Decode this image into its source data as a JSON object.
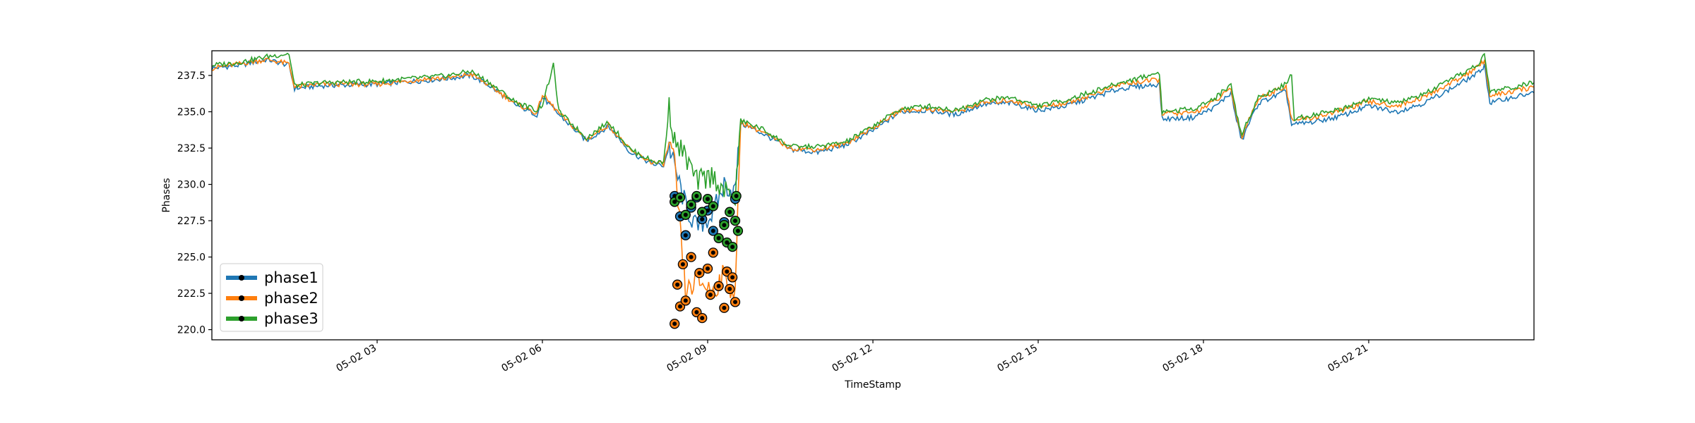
{
  "chart_data": {
    "type": "line",
    "xlabel": "TimeStamp",
    "ylabel": "Phases",
    "xlim": [
      0,
      24
    ],
    "ylim": [
      219.3,
      239.2
    ],
    "x_ticks": [
      {
        "value": 3,
        "label": "05-02 03"
      },
      {
        "value": 6,
        "label": "05-02 06"
      },
      {
        "value": 9,
        "label": "05-02 09"
      },
      {
        "value": 12,
        "label": "05-02 12"
      },
      {
        "value": 15,
        "label": "05-02 15"
      },
      {
        "value": 18,
        "label": "05-02 18"
      },
      {
        "value": 21,
        "label": "05-02 21"
      }
    ],
    "y_ticks": [
      {
        "value": 220.0,
        "label": "220.0"
      },
      {
        "value": 222.5,
        "label": "222.5"
      },
      {
        "value": 225.0,
        "label": "225.0"
      },
      {
        "value": 227.5,
        "label": "227.5"
      },
      {
        "value": 230.0,
        "label": "230.0"
      },
      {
        "value": 232.5,
        "label": "232.5"
      },
      {
        "value": 235.0,
        "label": "235.0"
      },
      {
        "value": 237.5,
        "label": "237.5"
      }
    ],
    "grid": false,
    "legend_position": "lower-left",
    "series": [
      {
        "name": "phase1",
        "color": "#1f77b4",
        "line": [
          [
            0,
            238.0
          ],
          [
            0.5,
            238.2
          ],
          [
            1.0,
            238.6
          ],
          [
            1.4,
            238.2
          ],
          [
            1.5,
            236.6
          ],
          [
            2.0,
            236.8
          ],
          [
            3.0,
            236.9
          ],
          [
            4.0,
            237.2
          ],
          [
            4.3,
            237.3
          ],
          [
            4.7,
            237.5
          ],
          [
            5.0,
            236.9
          ],
          [
            5.5,
            235.5
          ],
          [
            5.9,
            234.8
          ],
          [
            6.0,
            236.0
          ],
          [
            6.3,
            234.8
          ],
          [
            6.8,
            233.0
          ],
          [
            7.2,
            234.0
          ],
          [
            7.6,
            232.2
          ],
          [
            8.0,
            231.4
          ],
          [
            8.2,
            231.3
          ],
          [
            8.3,
            232.6
          ],
          [
            8.4,
            231.2
          ],
          [
            8.6,
            228.5
          ],
          [
            8.8,
            227.0
          ],
          [
            9.1,
            228.0
          ],
          [
            9.3,
            230.0
          ],
          [
            9.5,
            229.5
          ],
          [
            9.6,
            234.2
          ],
          [
            10.0,
            233.5
          ],
          [
            10.5,
            232.4
          ],
          [
            11.0,
            232.2
          ],
          [
            11.5,
            232.7
          ],
          [
            12.0,
            233.7
          ],
          [
            12.5,
            235.0
          ],
          [
            13.0,
            235.1
          ],
          [
            13.5,
            234.8
          ],
          [
            14.0,
            235.5
          ],
          [
            14.5,
            235.6
          ],
          [
            15.0,
            235.1
          ],
          [
            15.5,
            235.4
          ],
          [
            16.0,
            236.0
          ],
          [
            16.5,
            236.6
          ],
          [
            17.2,
            236.9
          ],
          [
            17.25,
            234.5
          ],
          [
            17.8,
            234.6
          ],
          [
            18.2,
            235.3
          ],
          [
            18.5,
            236.3
          ],
          [
            18.6,
            234.4
          ],
          [
            18.7,
            233.0
          ],
          [
            18.8,
            234.0
          ],
          [
            19.0,
            235.6
          ],
          [
            19.5,
            236.4
          ],
          [
            19.6,
            234.1
          ],
          [
            20.0,
            234.3
          ],
          [
            20.5,
            234.7
          ],
          [
            21.0,
            235.4
          ],
          [
            21.5,
            235.0
          ],
          [
            22.0,
            235.6
          ],
          [
            22.5,
            236.6
          ],
          [
            23.0,
            237.7
          ],
          [
            23.1,
            238.2
          ],
          [
            23.2,
            235.6
          ],
          [
            23.5,
            235.9
          ],
          [
            24.0,
            236.3
          ]
        ],
        "markers": [
          [
            8.4,
            229.2
          ],
          [
            8.5,
            227.8
          ],
          [
            8.6,
            226.5
          ],
          [
            8.7,
            228.4
          ],
          [
            8.8,
            229.1
          ],
          [
            8.9,
            227.6
          ],
          [
            9.0,
            228.2
          ],
          [
            9.1,
            226.8
          ],
          [
            9.3,
            227.4
          ],
          [
            9.5,
            229.0
          ]
        ]
      },
      {
        "name": "phase2",
        "color": "#ff7f0e",
        "line": [
          [
            0,
            238.0
          ],
          [
            0.5,
            238.3
          ],
          [
            1.0,
            238.6
          ],
          [
            1.4,
            238.3
          ],
          [
            1.5,
            236.7
          ],
          [
            2.0,
            236.9
          ],
          [
            3.0,
            236.9
          ],
          [
            4.0,
            237.3
          ],
          [
            4.3,
            237.3
          ],
          [
            4.7,
            237.6
          ],
          [
            5.0,
            236.9
          ],
          [
            5.5,
            235.6
          ],
          [
            5.9,
            234.9
          ],
          [
            6.0,
            236.2
          ],
          [
            6.3,
            234.9
          ],
          [
            6.8,
            233.1
          ],
          [
            7.2,
            234.1
          ],
          [
            7.6,
            232.3
          ],
          [
            8.0,
            231.5
          ],
          [
            8.2,
            231.4
          ],
          [
            8.3,
            232.8
          ],
          [
            8.4,
            231.3
          ],
          [
            8.6,
            222.5
          ],
          [
            8.8,
            223.4
          ],
          [
            9.1,
            222.7
          ],
          [
            9.3,
            223.8
          ],
          [
            9.5,
            222.3
          ],
          [
            9.6,
            234.3
          ],
          [
            10.0,
            233.6
          ],
          [
            10.5,
            232.5
          ],
          [
            11.0,
            232.4
          ],
          [
            11.5,
            232.8
          ],
          [
            12.0,
            233.9
          ],
          [
            12.5,
            235.1
          ],
          [
            13.0,
            235.2
          ],
          [
            13.5,
            235.0
          ],
          [
            14.0,
            235.6
          ],
          [
            14.5,
            235.8
          ],
          [
            15.0,
            235.3
          ],
          [
            15.5,
            235.6
          ],
          [
            16.0,
            236.2
          ],
          [
            16.5,
            236.9
          ],
          [
            17.2,
            237.2
          ],
          [
            17.25,
            234.9
          ],
          [
            17.8,
            234.9
          ],
          [
            18.2,
            235.7
          ],
          [
            18.5,
            236.6
          ],
          [
            18.6,
            234.6
          ],
          [
            18.7,
            233.3
          ],
          [
            18.8,
            234.3
          ],
          [
            19.0,
            235.9
          ],
          [
            19.5,
            236.8
          ],
          [
            19.6,
            234.4
          ],
          [
            20.0,
            234.6
          ],
          [
            20.5,
            235.1
          ],
          [
            21.0,
            235.7
          ],
          [
            21.5,
            235.4
          ],
          [
            22.0,
            236.0
          ],
          [
            22.5,
            237.0
          ],
          [
            23.0,
            238.1
          ],
          [
            23.1,
            238.6
          ],
          [
            23.2,
            236.1
          ],
          [
            23.5,
            236.3
          ],
          [
            24.0,
            236.7
          ]
        ],
        "markers": [
          [
            8.4,
            220.4
          ],
          [
            8.45,
            223.1
          ],
          [
            8.5,
            221.6
          ],
          [
            8.55,
            224.5
          ],
          [
            8.6,
            222.0
          ],
          [
            8.7,
            225.0
          ],
          [
            8.8,
            221.2
          ],
          [
            8.85,
            223.9
          ],
          [
            8.9,
            220.8
          ],
          [
            9.0,
            224.2
          ],
          [
            9.05,
            222.4
          ],
          [
            9.1,
            225.3
          ],
          [
            9.2,
            223.0
          ],
          [
            9.3,
            221.5
          ],
          [
            9.35,
            224.0
          ],
          [
            9.4,
            222.8
          ],
          [
            9.45,
            223.6
          ],
          [
            9.5,
            221.9
          ]
        ]
      },
      {
        "name": "phase3",
        "color": "#2ca02c",
        "line": [
          [
            0,
            238.2
          ],
          [
            0.5,
            238.4
          ],
          [
            1.0,
            238.8
          ],
          [
            1.4,
            239.0
          ],
          [
            1.5,
            236.8
          ],
          [
            2.0,
            237.0
          ],
          [
            3.0,
            237.1
          ],
          [
            4.0,
            237.4
          ],
          [
            4.3,
            237.5
          ],
          [
            4.7,
            237.8
          ],
          [
            5.0,
            237.1
          ],
          [
            5.5,
            235.7
          ],
          [
            5.9,
            235.1
          ],
          [
            6.0,
            235.5
          ],
          [
            6.2,
            238.2
          ],
          [
            6.3,
            235.0
          ],
          [
            6.8,
            233.2
          ],
          [
            7.2,
            234.3
          ],
          [
            7.6,
            232.4
          ],
          [
            8.0,
            231.6
          ],
          [
            8.2,
            231.5
          ],
          [
            8.3,
            235.3
          ],
          [
            8.4,
            233.0
          ],
          [
            8.6,
            231.9
          ],
          [
            8.8,
            230.2
          ],
          [
            9.1,
            230.6
          ],
          [
            9.3,
            229.5
          ],
          [
            9.5,
            229.0
          ],
          [
            9.6,
            234.4
          ],
          [
            10.0,
            233.8
          ],
          [
            10.5,
            232.6
          ],
          [
            11.0,
            232.6
          ],
          [
            11.5,
            232.9
          ],
          [
            12.0,
            234.0
          ],
          [
            12.5,
            235.2
          ],
          [
            13.0,
            235.4
          ],
          [
            13.5,
            235.1
          ],
          [
            14.0,
            235.8
          ],
          [
            14.5,
            236.0
          ],
          [
            15.0,
            235.4
          ],
          [
            15.5,
            235.8
          ],
          [
            16.0,
            236.4
          ],
          [
            16.5,
            237.0
          ],
          [
            17.2,
            237.7
          ],
          [
            17.25,
            235.0
          ],
          [
            17.8,
            235.2
          ],
          [
            18.2,
            235.9
          ],
          [
            18.5,
            236.9
          ],
          [
            18.6,
            234.8
          ],
          [
            18.7,
            233.4
          ],
          [
            18.8,
            234.4
          ],
          [
            19.0,
            236.0
          ],
          [
            19.5,
            236.9
          ],
          [
            19.6,
            237.6
          ],
          [
            19.65,
            234.5
          ],
          [
            20.0,
            234.8
          ],
          [
            20.5,
            235.2
          ],
          [
            21.0,
            235.9
          ],
          [
            21.5,
            235.6
          ],
          [
            22.0,
            236.2
          ],
          [
            22.5,
            237.2
          ],
          [
            23.0,
            238.3
          ],
          [
            23.1,
            238.9
          ],
          [
            23.2,
            236.4
          ],
          [
            23.5,
            236.6
          ],
          [
            24.0,
            237.0
          ]
        ],
        "markers": [
          [
            8.4,
            228.8
          ],
          [
            8.5,
            229.1
          ],
          [
            8.6,
            227.9
          ],
          [
            8.7,
            228.6
          ],
          [
            8.8,
            229.2
          ],
          [
            8.9,
            228.1
          ],
          [
            9.0,
            229.0
          ],
          [
            9.1,
            228.5
          ],
          [
            9.2,
            226.3
          ],
          [
            9.3,
            227.2
          ],
          [
            9.35,
            226.0
          ],
          [
            9.4,
            228.1
          ],
          [
            9.45,
            225.7
          ],
          [
            9.5,
            227.5
          ],
          [
            9.52,
            229.2
          ],
          [
            9.55,
            226.8
          ]
        ]
      }
    ]
  }
}
